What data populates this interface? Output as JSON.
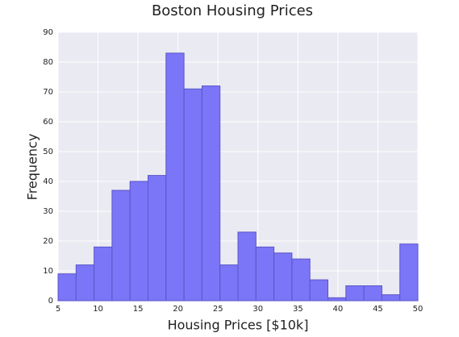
{
  "chart_data": {
    "type": "histogram",
    "title": "Boston Housing Prices",
    "xlabel": "Housing Prices [$10k]",
    "ylabel": "Frequency",
    "bins": [
      5,
      7.25,
      9.5,
      11.75,
      14,
      16.25,
      18.5,
      20.75,
      23,
      25.25,
      27.5,
      29.75,
      32,
      34.25,
      36.5,
      38.75,
      41,
      43.25,
      45.5,
      47.75,
      50
    ],
    "values": [
      9,
      12,
      18,
      37,
      40,
      42,
      83,
      71,
      72,
      12,
      23,
      18,
      16,
      14,
      7,
      1,
      5,
      5,
      2,
      19
    ],
    "color": "#7b76f7",
    "edgecolor": "#5a55c8",
    "xlim": [
      5,
      50
    ],
    "xticks": [
      5,
      10,
      15,
      20,
      25,
      30,
      35,
      40,
      45,
      50
    ],
    "ylim": [
      0,
      90
    ],
    "yticks": [
      0,
      10,
      20,
      30,
      40,
      50,
      60,
      70,
      80,
      90
    ],
    "grid": true
  }
}
